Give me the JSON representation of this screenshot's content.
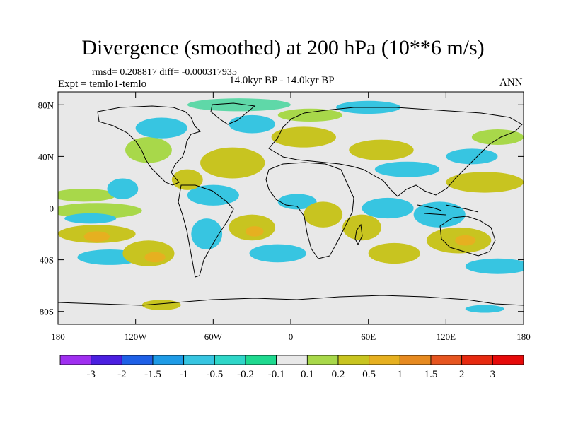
{
  "header": {
    "title": "Divergence (smoothed) at 200 hPa (10**6 m/s)",
    "stats": "rmsd= 0.208817  diff= -0.000317935",
    "experiment": "Expt = temlo1-temlo",
    "center_label": "14.0kyr BP - 14.0kyr BP",
    "season": "ANN"
  },
  "map": {
    "projection": "cylindrical-equidistant",
    "lon_range": [
      -180,
      180
    ],
    "lat_range": [
      -90,
      90
    ],
    "ocean_land_background": "#e8e8e8",
    "coastline_color": "#000000",
    "y_ticks": [
      {
        "lat": 80,
        "label": "80N"
      },
      {
        "lat": 40,
        "label": "40N"
      },
      {
        "lat": 0,
        "label": "0"
      },
      {
        "lat": -40,
        "label": "40S"
      },
      {
        "lat": -80,
        "label": "80S"
      }
    ],
    "x_ticks": [
      {
        "lon": -180,
        "label": "180"
      },
      {
        "lon": -120,
        "label": "120W"
      },
      {
        "lon": -60,
        "label": "60W"
      },
      {
        "lon": 0,
        "label": "0"
      },
      {
        "lon": 60,
        "label": "60E"
      },
      {
        "lon": 120,
        "label": "120E"
      },
      {
        "lon": 180,
        "label": "180"
      }
    ],
    "anomalies": [
      {
        "name": "eq-east-pacific",
        "lon": -150,
        "lat": -2,
        "rx": 35,
        "ry": 6,
        "color": "#a8d84a"
      },
      {
        "name": "s-pac-band",
        "lon": -150,
        "lat": -20,
        "rx": 30,
        "ry": 7,
        "color": "#c8c420"
      },
      {
        "name": "s-pac-core",
        "lon": -150,
        "lat": -22,
        "rx": 10,
        "ry": 4,
        "color": "#e6b020"
      },
      {
        "name": "s-pac-blue",
        "lon": -155,
        "lat": -8,
        "rx": 20,
        "ry": 4,
        "color": "#37c5e1"
      },
      {
        "name": "n-pac-green",
        "lon": -160,
        "lat": 10,
        "rx": 25,
        "ry": 5,
        "color": "#a8d84a"
      },
      {
        "name": "sub-s-blue",
        "lon": -140,
        "lat": -38,
        "rx": 25,
        "ry": 6,
        "color": "#37c5e1"
      },
      {
        "name": "cent-pac",
        "lon": -110,
        "lat": -35,
        "rx": 20,
        "ry": 10,
        "color": "#c8c420"
      },
      {
        "name": "cent-pac-core",
        "lon": -105,
        "lat": -38,
        "rx": 8,
        "ry": 4,
        "color": "#e6b020"
      },
      {
        "name": "npac-blue",
        "lon": -130,
        "lat": 15,
        "rx": 12,
        "ry": 8,
        "color": "#37c5e1"
      },
      {
        "name": "us-green",
        "lon": -110,
        "lat": 45,
        "rx": 18,
        "ry": 10,
        "color": "#a8d84a"
      },
      {
        "name": "canada-blue",
        "lon": -100,
        "lat": 62,
        "rx": 20,
        "ry": 8,
        "color": "#37c5e1"
      },
      {
        "name": "greenland-top",
        "lon": -40,
        "lat": 80,
        "rx": 40,
        "ry": 5,
        "color": "#5fd8a8"
      },
      {
        "name": "greenland-blue",
        "lon": -30,
        "lat": 65,
        "rx": 18,
        "ry": 7,
        "color": "#37c5e1"
      },
      {
        "name": "atl-yellow",
        "lon": -45,
        "lat": 35,
        "rx": 25,
        "ry": 12,
        "color": "#c8c420"
      },
      {
        "name": "atl-blue",
        "lon": -60,
        "lat": 10,
        "rx": 20,
        "ry": 8,
        "color": "#37c5e1"
      },
      {
        "name": "carib-yellow",
        "lon": -80,
        "lat": 22,
        "rx": 12,
        "ry": 8,
        "color": "#c8c420"
      },
      {
        "name": "sa-blue",
        "lon": -65,
        "lat": -20,
        "rx": 12,
        "ry": 12,
        "color": "#37c5e1"
      },
      {
        "name": "s-atl-yellow",
        "lon": -30,
        "lat": -15,
        "rx": 18,
        "ry": 10,
        "color": "#c8c420"
      },
      {
        "name": "s-atl-core",
        "lon": -28,
        "lat": -18,
        "rx": 7,
        "ry": 4,
        "color": "#e6b020"
      },
      {
        "name": "s-atl-blue",
        "lon": -10,
        "lat": -35,
        "rx": 22,
        "ry": 7,
        "color": "#37c5e1"
      },
      {
        "name": "afr-blue",
        "lon": 5,
        "lat": 5,
        "rx": 15,
        "ry": 6,
        "color": "#37c5e1"
      },
      {
        "name": "afr-yellow",
        "lon": 25,
        "lat": -5,
        "rx": 15,
        "ry": 10,
        "color": "#c8c420"
      },
      {
        "name": "euro-yellow",
        "lon": 10,
        "lat": 55,
        "rx": 25,
        "ry": 8,
        "color": "#c8c420"
      },
      {
        "name": "euro-green",
        "lon": 15,
        "lat": 72,
        "rx": 25,
        "ry": 5,
        "color": "#a8d84a"
      },
      {
        "name": "arctic-blue",
        "lon": 60,
        "lat": 78,
        "rx": 25,
        "ry": 5,
        "color": "#37c5e1"
      },
      {
        "name": "asia-yellow",
        "lon": 70,
        "lat": 45,
        "rx": 25,
        "ry": 8,
        "color": "#c8c420"
      },
      {
        "name": "asia-blue",
        "lon": 90,
        "lat": 30,
        "rx": 25,
        "ry": 6,
        "color": "#37c5e1"
      },
      {
        "name": "indian-yellow",
        "lon": 55,
        "lat": -15,
        "rx": 15,
        "ry": 10,
        "color": "#c8c420"
      },
      {
        "name": "indian-blue",
        "lon": 75,
        "lat": 0,
        "rx": 20,
        "ry": 8,
        "color": "#37c5e1"
      },
      {
        "name": "indian-s",
        "lon": 80,
        "lat": -35,
        "rx": 20,
        "ry": 8,
        "color": "#c8c420"
      },
      {
        "name": "indo-blue",
        "lon": 115,
        "lat": -5,
        "rx": 20,
        "ry": 10,
        "color": "#37c5e1"
      },
      {
        "name": "aus-yellow",
        "lon": 130,
        "lat": -25,
        "rx": 25,
        "ry": 10,
        "color": "#c8c420"
      },
      {
        "name": "aus-core",
        "lon": 135,
        "lat": -25,
        "rx": 8,
        "ry": 4,
        "color": "#e6b020"
      },
      {
        "name": "wpac-yellow",
        "lon": 150,
        "lat": 20,
        "rx": 30,
        "ry": 8,
        "color": "#c8c420"
      },
      {
        "name": "wpac-blue",
        "lon": 140,
        "lat": 40,
        "rx": 20,
        "ry": 6,
        "color": "#37c5e1"
      },
      {
        "name": "npac-green2",
        "lon": 160,
        "lat": 55,
        "rx": 20,
        "ry": 6,
        "color": "#a8d84a"
      },
      {
        "name": "so-blue",
        "lon": 160,
        "lat": -45,
        "rx": 25,
        "ry": 6,
        "color": "#37c5e1"
      },
      {
        "name": "ant-yellow",
        "lon": -100,
        "lat": -75,
        "rx": 15,
        "ry": 4,
        "color": "#c8c420"
      },
      {
        "name": "ant-blue",
        "lon": 150,
        "lat": -78,
        "rx": 15,
        "ry": 3,
        "color": "#37c5e1"
      }
    ]
  },
  "colorbar": {
    "labels": [
      "-3",
      "-2",
      "-1.5",
      "-1",
      "-0.5",
      "-0.2",
      "-0.1",
      "0.1",
      "0.2",
      "0.5",
      "1",
      "1.5",
      "2",
      "3"
    ],
    "colors": [
      "#9f2ff0",
      "#4b1fe0",
      "#1e60e6",
      "#1e9be6",
      "#37c5e1",
      "#2fd6c8",
      "#1fd98f",
      "#e8e8e8",
      "#a8d84a",
      "#c8c420",
      "#e6b020",
      "#e68a20",
      "#e65520",
      "#e62a10",
      "#e60a0a"
    ]
  }
}
